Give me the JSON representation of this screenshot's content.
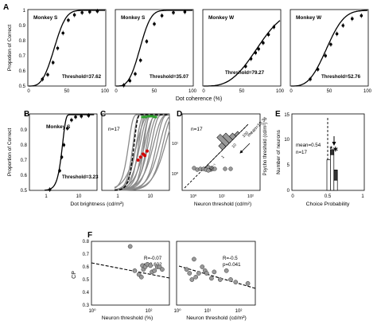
{
  "panel_labels": [
    "A",
    "B",
    "C",
    "D",
    "E",
    "F"
  ],
  "chart_data": [
    {
      "panel": "A",
      "type": "scatter",
      "title": "Monkey S",
      "xlabel": "",
      "ylabel": "Propotion of Correct",
      "x_ticks": [
        "0",
        "50",
        "100"
      ],
      "y_ticks": [
        "0.5",
        "0.6",
        "0.7",
        "0.8",
        "0.9",
        "1"
      ],
      "xlim": [
        0,
        100
      ],
      "ylim": [
        0.5,
        1.0
      ],
      "threshold_label": "Threshold=37.62",
      "fit": {
        "threshold": 37.62,
        "slope": 3.2
      },
      "points": [
        [
          18,
          0.545
        ],
        [
          25,
          0.575
        ],
        [
          32,
          0.655
        ],
        [
          38,
          0.75
        ],
        [
          45,
          0.85
        ],
        [
          52,
          0.935
        ],
        [
          60,
          0.97
        ],
        [
          70,
          0.985
        ],
        [
          80,
          0.99
        ],
        [
          90,
          0.995
        ]
      ]
    },
    {
      "panel": "A",
      "type": "scatter",
      "title": "Monkey S",
      "xlabel": "",
      "ylabel": "",
      "x_ticks": [
        "0",
        "50",
        "100"
      ],
      "xlim": [
        0,
        100
      ],
      "ylim": [
        0.5,
        1.0
      ],
      "threshold_label": "Threshold=35.07",
      "fit": {
        "threshold": 35.07,
        "slope": 3.2
      },
      "points": [
        [
          10,
          0.505
        ],
        [
          18,
          0.535
        ],
        [
          25,
          0.58
        ],
        [
          32,
          0.67
        ],
        [
          40,
          0.795
        ],
        [
          50,
          0.91
        ],
        [
          60,
          0.965
        ],
        [
          75,
          0.985
        ],
        [
          90,
          0.99
        ]
      ]
    },
    {
      "panel": "A",
      "type": "scatter",
      "title": "Monkey W",
      "xlabel": "Dot coherence (%)",
      "ylabel": "",
      "x_ticks": [
        "0",
        "50",
        "100"
      ],
      "xlim": [
        0,
        100
      ],
      "ylim": [
        0.5,
        1.0
      ],
      "threshold_label": "Threshold=79.27",
      "fit": {
        "threshold": 79.27,
        "slope": 3.0
      },
      "points": [
        [
          55,
          0.63
        ],
        [
          62,
          0.68
        ],
        [
          68,
          0.72
        ],
        [
          72,
          0.745
        ],
        [
          78,
          0.785
        ],
        [
          85,
          0.84
        ],
        [
          92,
          0.89
        ]
      ]
    },
    {
      "panel": "A",
      "type": "scatter",
      "title": "Monkey W",
      "xlabel": "",
      "ylabel": "",
      "x_ticks": [
        "0",
        "50",
        "100"
      ],
      "xlim": [
        0,
        100
      ],
      "ylim": [
        0.5,
        1.0
      ],
      "threshold_label": "Threshold=52.76",
      "fit": {
        "threshold": 52.76,
        "slope": 3.0
      },
      "points": [
        [
          25,
          0.545
        ],
        [
          35,
          0.61
        ],
        [
          45,
          0.7
        ],
        [
          52,
          0.775
        ],
        [
          60,
          0.845
        ],
        [
          68,
          0.9
        ],
        [
          80,
          0.945
        ],
        [
          92,
          0.965
        ]
      ]
    },
    {
      "panel": "B",
      "type": "scatter",
      "title": "Monkey S",
      "xlabel": "Dot brightness (cd/m²)",
      "ylabel": "Proportion of Correct",
      "x_ticks": [
        "1",
        "10"
      ],
      "y_ticks": [
        "0.5",
        "0.6",
        "0.7",
        "0.8",
        "0.9",
        "1"
      ],
      "x_scale": "log",
      "ylim": [
        0.5,
        1.0
      ],
      "threshold_label": "Threshold=3.23",
      "fit": {
        "threshold": 3.23,
        "slope": 4.5
      },
      "points": [
        [
          1.3,
          0.505
        ],
        [
          2.6,
          0.63
        ],
        [
          3.0,
          0.72
        ],
        [
          3.5,
          0.8
        ],
        [
          4.5,
          0.91
        ],
        [
          6,
          0.965
        ],
        [
          8,
          0.985
        ],
        [
          12,
          0.99
        ],
        [
          20,
          0.995
        ]
      ]
    },
    {
      "panel": "C",
      "type": "line",
      "annotation": "n=17",
      "x_ticks": [
        "1",
        "10"
      ],
      "x_scale": "log",
      "ylim": [
        0.5,
        1.0
      ]
    },
    {
      "panel": "D",
      "type": "scatter",
      "annotation": "n=17",
      "xlabel": "Neuron threshold (cd/m²)",
      "ylabel": "Psycho threshold (cd/m²)",
      "x_ticks": [
        "10⁰",
        "10¹",
        "10²"
      ],
      "y_ticks": [
        "10⁰",
        "10¹"
      ],
      "diag_hist": {
        "label": "mean=10.36",
        "ticks": [
          "10⁻¹",
          "1",
          "10",
          "100"
        ]
      }
    },
    {
      "panel": "E",
      "type": "bar",
      "xlabel": "Choice Probability",
      "ylabel": "Number of neurons",
      "x_ticks": [
        "0",
        "0.5",
        "1"
      ],
      "y_ticks": [
        "0",
        "5",
        "10",
        "15"
      ],
      "annotations": [
        "mean=0.54",
        "n=17"
      ],
      "significance": "*∗",
      "bins": [
        0.45,
        0.5,
        0.55,
        0.6
      ],
      "open_counts": [
        0,
        6,
        7,
        2
      ],
      "filled_counts": [
        0,
        0,
        1,
        2
      ]
    },
    {
      "panel": "F",
      "type": "scatter",
      "xlabel": "Neuron threshold (%)",
      "ylabel": "CP",
      "x_ticks": [
        "10⁰",
        "10²"
      ],
      "y_ticks": [
        "0.3",
        "0.4",
        "0.5",
        "0.6",
        "0.7",
        "0.8"
      ],
      "x_scale": "log",
      "ylim": [
        0.3,
        0.8
      ],
      "stats": [
        "R=-0.07",
        "p=0.602"
      ],
      "points": [
        [
          22,
          0.76
        ],
        [
          32,
          0.57
        ],
        [
          45,
          0.54
        ],
        [
          55,
          0.52
        ],
        [
          60,
          0.61
        ],
        [
          65,
          0.58
        ],
        [
          75,
          0.6
        ],
        [
          90,
          0.62
        ],
        [
          115,
          0.61
        ],
        [
          130,
          0.56
        ],
        [
          160,
          0.57
        ],
        [
          200,
          0.6
        ],
        [
          240,
          0.6
        ],
        [
          300,
          0.58
        ]
      ]
    },
    {
      "panel": "F",
      "type": "scatter",
      "xlabel": "Neuron threshold (cd/m²)",
      "ylabel": "",
      "x_ticks": [
        "10⁰",
        "10¹",
        "10²"
      ],
      "x_scale": "log",
      "ylim": [
        0.3,
        0.8
      ],
      "stats": [
        "R=-0.5",
        "p=0.041"
      ],
      "points": [
        [
          2.0,
          0.58
        ],
        [
          2.5,
          0.55
        ],
        [
          3.0,
          0.5
        ],
        [
          3.5,
          0.66
        ],
        [
          4.0,
          0.52
        ],
        [
          5.0,
          0.55
        ],
        [
          6.5,
          0.6
        ],
        [
          8,
          0.57
        ],
        [
          9,
          0.55
        ],
        [
          13,
          0.51
        ],
        [
          16,
          0.56
        ],
        [
          25,
          0.5
        ],
        [
          40,
          0.57
        ],
        [
          55,
          0.5
        ],
        [
          80,
          0.48
        ],
        [
          200,
          0.47
        ]
      ]
    }
  ]
}
